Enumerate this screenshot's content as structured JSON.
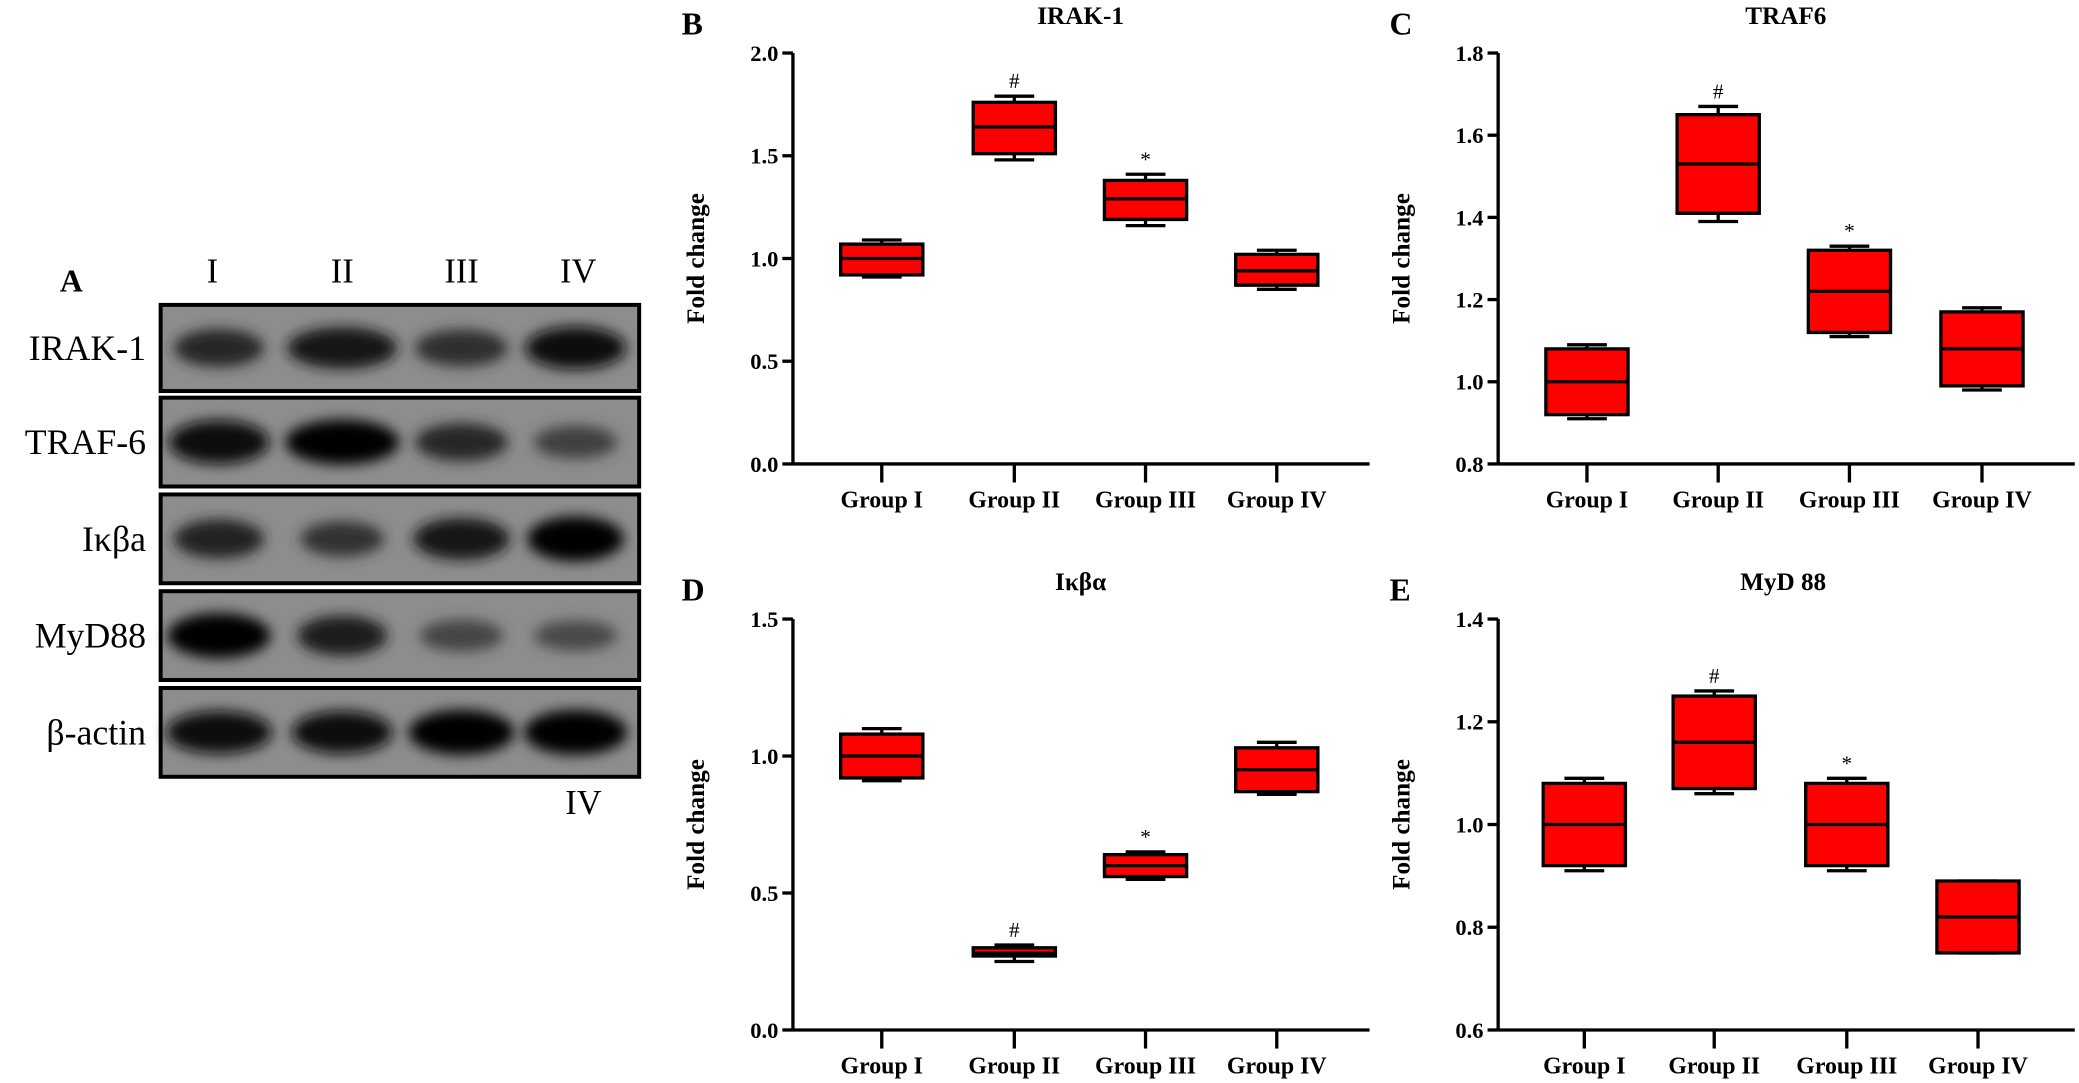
{
  "blot": {
    "panel_letter": "A",
    "lanes": [
      "I",
      "II",
      "III",
      "IV"
    ],
    "rows": [
      "IRAK-1",
      "TRAF-6",
      "Iκβa",
      "MyD88",
      "β-actin"
    ],
    "footer_label": "IV"
  },
  "colors": {
    "box_fill": "#ff0000",
    "box_stroke": "#000000"
  },
  "chart_data": [
    {
      "panel_letter": "B",
      "type": "box",
      "title": "IRAK-1",
      "ylabel": "Fold change",
      "xlabel": "",
      "ylim": [
        0.0,
        2.0
      ],
      "yticks": [
        "0.0",
        "0.5",
        "1.0",
        "1.5",
        "2.0"
      ],
      "grid": false,
      "categories": [
        "Group I",
        "Group II",
        "Group III",
        "Group IV"
      ],
      "boxes": [
        {
          "min": 0.91,
          "q1": 0.92,
          "median": 1.0,
          "q3": 1.07,
          "max": 1.09,
          "annotation": ""
        },
        {
          "min": 1.48,
          "q1": 1.51,
          "median": 1.64,
          "q3": 1.76,
          "max": 1.79,
          "annotation": "#"
        },
        {
          "min": 1.16,
          "q1": 1.19,
          "median": 1.29,
          "q3": 1.38,
          "max": 1.41,
          "annotation": "*"
        },
        {
          "min": 0.85,
          "q1": 0.87,
          "median": 0.94,
          "q3": 1.02,
          "max": 1.04,
          "annotation": ""
        }
      ]
    },
    {
      "panel_letter": "C",
      "type": "box",
      "title": "TRAF6",
      "ylabel": "Fold change",
      "xlabel": "",
      "ylim": [
        0.8,
        1.8
      ],
      "yticks": [
        "0.8",
        "1.0",
        "1.2",
        "1.4",
        "1.6",
        "1.8"
      ],
      "grid": false,
      "categories": [
        "Group I",
        "Group II",
        "Group III",
        "Group IV"
      ],
      "boxes": [
        {
          "min": 0.91,
          "q1": 0.92,
          "median": 1.0,
          "q3": 1.08,
          "max": 1.09,
          "annotation": ""
        },
        {
          "min": 1.39,
          "q1": 1.41,
          "median": 1.53,
          "q3": 1.65,
          "max": 1.67,
          "annotation": "#"
        },
        {
          "min": 1.11,
          "q1": 1.12,
          "median": 1.22,
          "q3": 1.32,
          "max": 1.33,
          "annotation": "*"
        },
        {
          "min": 0.98,
          "q1": 0.99,
          "median": 1.08,
          "q3": 1.17,
          "max": 1.18,
          "annotation": ""
        }
      ]
    },
    {
      "panel_letter": "D",
      "type": "box",
      "title": "Iκβα",
      "ylabel": "Fold change",
      "xlabel": "",
      "ylim": [
        0.0,
        1.5
      ],
      "yticks": [
        "0.0",
        "0.5",
        "1.0",
        "1.5"
      ],
      "grid": false,
      "categories": [
        "Group I",
        "Group II",
        "Group III",
        "Group IV"
      ],
      "boxes": [
        {
          "min": 0.91,
          "q1": 0.92,
          "median": 1.0,
          "q3": 1.08,
          "max": 1.1,
          "annotation": ""
        },
        {
          "min": 0.25,
          "q1": 0.27,
          "median": 0.28,
          "q3": 0.3,
          "max": 0.31,
          "annotation": "#"
        },
        {
          "min": 0.55,
          "q1": 0.56,
          "median": 0.6,
          "q3": 0.64,
          "max": 0.65,
          "annotation": "*"
        },
        {
          "min": 0.86,
          "q1": 0.87,
          "median": 0.95,
          "q3": 1.03,
          "max": 1.05,
          "annotation": ""
        }
      ]
    },
    {
      "panel_letter": "E",
      "type": "box",
      "title": "MyD 88",
      "ylabel": "Fold change",
      "xlabel": "",
      "ylim": [
        0.6,
        1.4
      ],
      "yticks": [
        "0.6",
        "0.8",
        "1.0",
        "1.2",
        "1.4"
      ],
      "grid": false,
      "categories": [
        "Group I",
        "Group II",
        "Group III",
        "Group IV"
      ],
      "boxes": [
        {
          "min": 0.91,
          "q1": 0.92,
          "median": 1.0,
          "q3": 1.08,
          "max": 1.09,
          "annotation": ""
        },
        {
          "min": 1.06,
          "q1": 1.07,
          "median": 1.16,
          "q3": 1.25,
          "max": 1.26,
          "annotation": "#"
        },
        {
          "min": 0.91,
          "q1": 0.92,
          "median": 1.0,
          "q3": 1.08,
          "max": 1.09,
          "annotation": "*"
        },
        {
          "min": 0.75,
          "q1": 0.75,
          "median": 0.82,
          "q3": 0.89,
          "max": 0.89,
          "annotation": ""
        }
      ]
    }
  ]
}
